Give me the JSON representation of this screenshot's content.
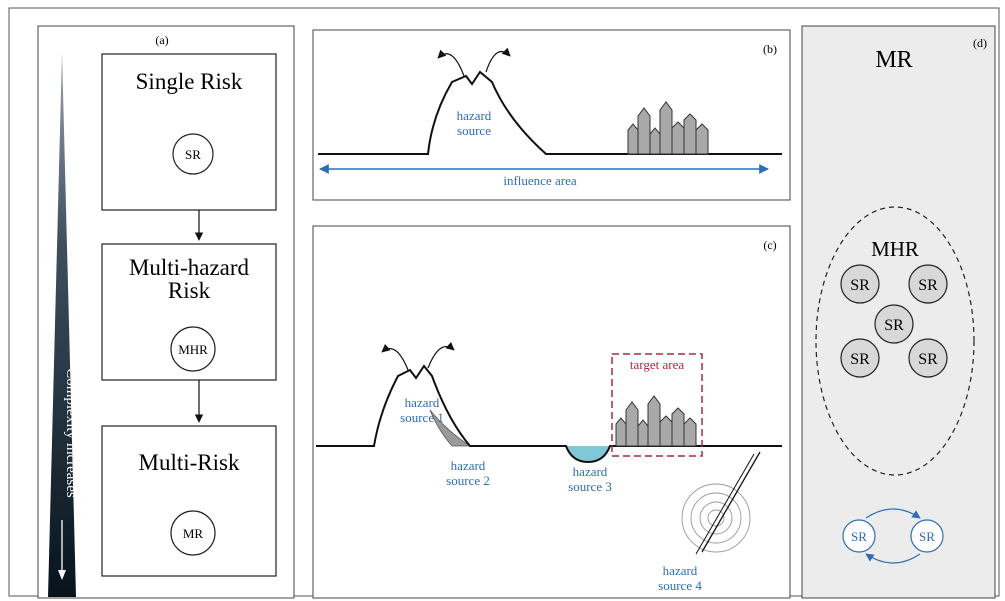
{
  "panel_a": {
    "label": "(a)",
    "boxes": [
      {
        "title": "Single Risk",
        "circle": "SR"
      },
      {
        "title_line1": "Multi-hazard",
        "title_line2": "Risk",
        "circle": "MHR"
      },
      {
        "title": "Multi-Risk",
        "circle": "MR"
      }
    ],
    "complexity_label": "Complexity increases"
  },
  "panel_b": {
    "label": "(b)",
    "hazard_line1": "hazard",
    "hazard_line2": "source",
    "influence_label": "influence area"
  },
  "panel_c": {
    "label": "(c)",
    "target_label": "target area",
    "hazards": [
      {
        "line1": "hazard",
        "line2": "source 1"
      },
      {
        "line1": "hazard",
        "line2": "source 2"
      },
      {
        "line1": "hazard",
        "line2": "source 3"
      },
      {
        "line1": "hazard",
        "line2": "source 4"
      }
    ]
  },
  "panel_d": {
    "label": "(d)",
    "mr_title": "MR",
    "mhr_title": "MHR",
    "sr_circles": [
      "SR",
      "SR",
      "SR",
      "SR",
      "SR"
    ],
    "cycle_circles": [
      "SR",
      "SR"
    ]
  },
  "colors": {
    "hazard_blue": "#2e6db4",
    "target_red": "#b0283c",
    "panel_d_bg": "#ececec",
    "building_gray": "#a9a9a9",
    "water": "#7fc8d8"
  }
}
